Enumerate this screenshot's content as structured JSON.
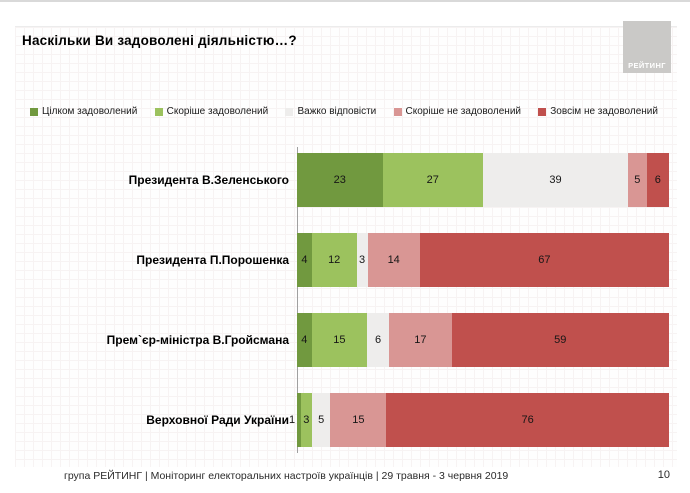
{
  "title": "Наскільки Ви задоволені діяльністю…?",
  "logo": {
    "text": "РЕЙТИНГ"
  },
  "colors": {
    "fully_satisfied": "#71993f",
    "rather_satisfied": "#9cc25e",
    "hard_to_say": "#eeedec",
    "rather_unsatisfied": "#d99694",
    "fully_unsatisfied": "#c0504d"
  },
  "legend": [
    {
      "label": "Цілком задоволений",
      "color": "#71993f"
    },
    {
      "label": "Скоріше задоволений",
      "color": "#9cc25e"
    },
    {
      "label": "Важко відповісти",
      "color": "#eeedec"
    },
    {
      "label": "Скоріше не задоволений",
      "color": "#d99694"
    },
    {
      "label": "Зовсім не задоволений",
      "color": "#c0504d"
    }
  ],
  "chart_data": {
    "type": "bar",
    "orientation": "horizontal",
    "stacked": true,
    "title": "Наскільки Ви задоволені діяльністю…?",
    "categories": [
      "Президента В.Зеленського",
      "Президента П.Порошенка",
      "Прем`єр-міністра В.Гройсмана",
      "Верховної Ради України"
    ],
    "series": [
      {
        "name": "Цілком задоволений",
        "color": "#71993f",
        "values": [
          23,
          4,
          4,
          1
        ]
      },
      {
        "name": "Скоріше задоволений",
        "color": "#9cc25e",
        "values": [
          27,
          12,
          15,
          3
        ]
      },
      {
        "name": "Важко відповісти",
        "color": "#eeedec",
        "values": [
          39,
          3,
          6,
          5
        ]
      },
      {
        "name": "Скоріше не задоволений",
        "color": "#d99694",
        "values": [
          5,
          14,
          17,
          15
        ]
      },
      {
        "name": "Зовсім не задоволений",
        "color": "#c0504d",
        "values": [
          6,
          67,
          59,
          76
        ]
      }
    ],
    "xlim": [
      0,
      100
    ],
    "value_labels": true,
    "legend_position": "top",
    "grid": false
  },
  "footer": {
    "source": "група РЕЙТИНГ | Моніторинг електоральних настроїв українців | 29 травня - 3 червня 2019",
    "page_number": "10"
  }
}
